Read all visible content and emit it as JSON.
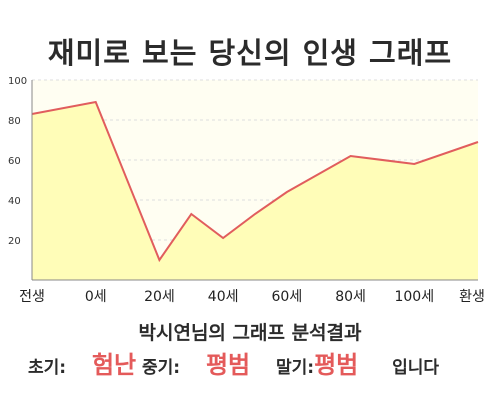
{
  "title": "재미로 보는 당신의 인생 그래프",
  "colors": {
    "background": "#fffef2",
    "fill": "#fffdb8",
    "line": "#e15d5d",
    "grid": "#dddddd",
    "axis": "#888888",
    "accent": "#e45a5a",
    "text": "#2b2b2b"
  },
  "chart_data": {
    "type": "area",
    "categories": [
      "전생",
      "0세",
      "20세",
      "40세",
      "60세",
      "80세",
      "100세",
      "환생"
    ],
    "x": [
      -1,
      0,
      1,
      1.5,
      2,
      2.5,
      3,
      4,
      5,
      6
    ],
    "y": [
      83,
      89,
      10,
      33,
      21,
      33,
      44,
      62,
      58,
      69
    ],
    "yticks": [
      20,
      40,
      60,
      80,
      100
    ],
    "ylim": [
      0,
      100
    ],
    "xlim": [
      -1,
      6
    ],
    "grid": true,
    "title": "재미로 보는 당신의 인생 그래프",
    "xlabel": "",
    "ylabel": ""
  },
  "result": {
    "heading": "박시연님의 그래프 분석결과",
    "early_label": "초기:",
    "early_value": "험난",
    "middle_label": "중기:",
    "middle_value": "평범",
    "late_label": "말기:",
    "late_value": "평범",
    "suffix": "입니다"
  }
}
